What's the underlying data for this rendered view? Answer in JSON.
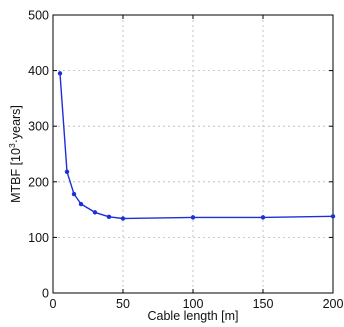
{
  "chart_data": {
    "type": "line",
    "title": "",
    "xlabel": "Cable length [m]",
    "ylabel": {
      "prefix": "MTBF [10",
      "superscript": "3",
      "suffix": "·years]"
    },
    "xlim": [
      0,
      200
    ],
    "ylim": [
      0,
      500
    ],
    "xticks": [
      "0",
      "50",
      "100",
      "150",
      "200"
    ],
    "yticks": [
      "0",
      "100",
      "200",
      "300",
      "400",
      "500"
    ],
    "grid": true,
    "series": [
      {
        "color": "#1f2fd6",
        "marker": "dot",
        "x": [
          5,
          10,
          15,
          20,
          30,
          40,
          50,
          100,
          150,
          200
        ],
        "y": [
          395,
          218,
          178,
          160,
          145,
          137,
          134,
          136,
          136,
          138
        ]
      }
    ]
  }
}
